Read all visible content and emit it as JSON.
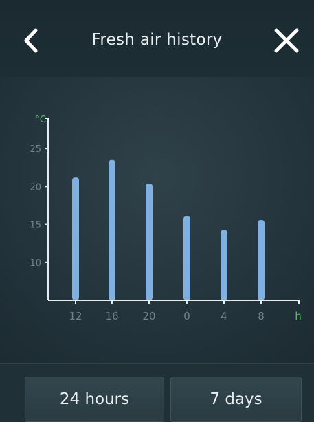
{
  "header": {
    "title": "Fresh air history",
    "back_icon": "chevron-left-icon",
    "close_icon": "close-icon"
  },
  "tabs": [
    {
      "label": "24 hours"
    },
    {
      "label": "7 days"
    }
  ],
  "colors": {
    "bar": "#7fb0e0",
    "axis": "#e6ecef",
    "tick_label": "#6e858c",
    "unit_label": "#55c060"
  },
  "chart_data": {
    "type": "bar",
    "y_unit": "°C",
    "x_unit": "h",
    "categories": [
      "12",
      "16",
      "20",
      "0",
      "4",
      "8"
    ],
    "values": [
      21.2,
      23.5,
      20.4,
      16.1,
      14.3,
      15.6
    ],
    "yticks": [
      10,
      15,
      20,
      25
    ],
    "ylim": [
      5,
      29
    ],
    "grid": false
  }
}
